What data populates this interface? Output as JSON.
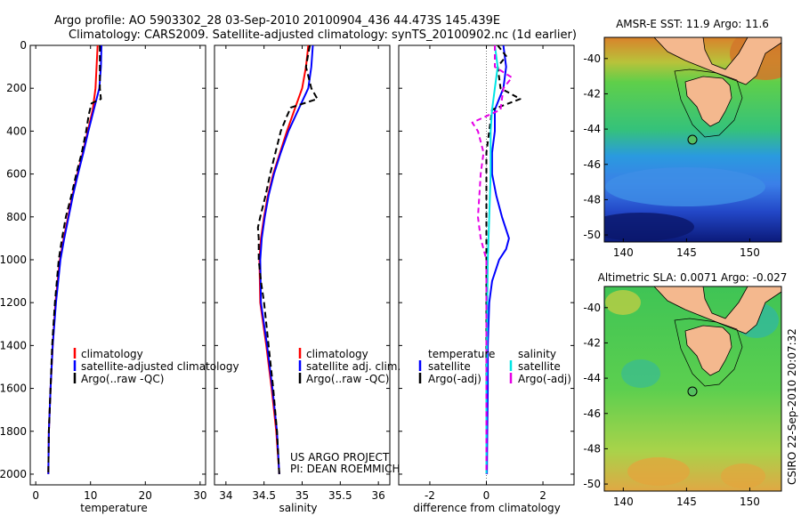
{
  "header": {
    "line1": "Argo profile: AO 5903302_28 03-Sep-2010 20100904_436 44.473S 145.439E",
    "line2": "Climatology: CARS2009. Satellite-adjusted climatology: synTS_20100902.nc (1d earlier)"
  },
  "side_label": "CSIRO 22-Sep-2010 20:07:32",
  "project": {
    "line1": "US ARGO PROJECT",
    "line2": "PI: DEAN ROEMMICH"
  },
  "colors": {
    "climatology": "#ff0000",
    "satellite": "#0000ff",
    "argo": "#000000",
    "sal_satellite": "#00e5e5",
    "sal_argo": "#e600e6"
  },
  "chart_data": [
    {
      "id": "temperature",
      "type": "line",
      "xlabel": "temperature",
      "xlim": [
        -1,
        31
      ],
      "ylim": [
        0,
        2050
      ],
      "y_reversed": true,
      "xticks": [
        "0",
        "10",
        "20",
        "30"
      ],
      "xtick_values": [
        0,
        10,
        20,
        30
      ],
      "yticks": [
        "0",
        "200",
        "400",
        "600",
        "800",
        "1000",
        "1200",
        "1400",
        "1600",
        "1800",
        "2000"
      ],
      "ytick_values": [
        0,
        200,
        400,
        600,
        800,
        1000,
        1200,
        1400,
        1600,
        1800,
        2000
      ],
      "legend": [
        "climatology",
        "satellite-adjusted climatology",
        "Argo(..raw -QC)"
      ],
      "series": [
        {
          "name": "climatology",
          "color": "#ff0000",
          "dash": "",
          "depth": [
            0,
            100,
            200,
            300,
            400,
            500,
            600,
            700,
            800,
            900,
            1000,
            1200,
            1400,
            1600,
            1800,
            2000
          ],
          "values": [
            11.3,
            11.1,
            10.9,
            10.4,
            9.5,
            8.6,
            7.6,
            6.7,
            5.9,
            5.1,
            4.4,
            3.6,
            3.1,
            2.7,
            2.4,
            2.3
          ]
        },
        {
          "name": "satellite-adjusted climatology",
          "color": "#0000ff",
          "dash": "",
          "depth": [
            0,
            100,
            200,
            300,
            400,
            500,
            600,
            700,
            800,
            900,
            1000,
            1200,
            1400,
            1600,
            1800,
            2000
          ],
          "values": [
            12.0,
            11.9,
            11.6,
            10.6,
            9.6,
            8.7,
            7.7,
            6.8,
            6.0,
            5.2,
            4.5,
            3.7,
            3.1,
            2.7,
            2.4,
            2.3
          ]
        },
        {
          "name": "Argo(..raw -QC)",
          "color": "#000000",
          "dash": "7,4",
          "depth": [
            0,
            100,
            200,
            250,
            270,
            320,
            400,
            500,
            600,
            700,
            800,
            900,
            1000,
            1200,
            1400,
            1600,
            1800,
            2000
          ],
          "values": [
            11.7,
            11.7,
            11.7,
            11.9,
            10.2,
            9.7,
            9.2,
            8.4,
            7.4,
            6.5,
            5.5,
            4.8,
            4.2,
            3.5,
            3.0,
            2.7,
            2.4,
            2.3
          ]
        }
      ]
    },
    {
      "id": "salinity",
      "type": "line",
      "xlabel": "salinity",
      "xlim": [
        33.85,
        36.15
      ],
      "ylim": [
        0,
        2050
      ],
      "y_reversed": true,
      "xticks": [
        "34",
        "34.5",
        "35",
        "35.5",
        "36"
      ],
      "xtick_values": [
        34,
        34.5,
        35,
        35.5,
        36
      ],
      "legend": [
        "climatology",
        "satellite adj. clim.",
        "Argo(..raw -QC)"
      ],
      "series": [
        {
          "name": "climatology",
          "color": "#ff0000",
          "dash": "",
          "depth": [
            0,
            100,
            200,
            300,
            400,
            500,
            600,
            700,
            800,
            900,
            1000,
            1200,
            1400,
            1600,
            1800,
            2000
          ],
          "values": [
            35.08,
            35.05,
            35.0,
            34.9,
            34.8,
            34.71,
            34.62,
            34.55,
            34.5,
            34.46,
            34.44,
            34.45,
            34.53,
            34.6,
            34.66,
            34.7
          ]
        },
        {
          "name": "satellite adj. clim.",
          "color": "#0000ff",
          "dash": "",
          "depth": [
            0,
            100,
            200,
            300,
            400,
            500,
            600,
            700,
            800,
            900,
            1000,
            1200,
            1400,
            1600,
            1800,
            2000
          ],
          "values": [
            35.14,
            35.12,
            35.08,
            34.95,
            34.82,
            34.72,
            34.63,
            34.56,
            34.51,
            34.47,
            34.45,
            34.46,
            34.54,
            34.61,
            34.67,
            34.7
          ]
        },
        {
          "name": "Argo(..raw -QC)",
          "color": "#000000",
          "dash": "7,4",
          "depth": [
            0,
            100,
            200,
            250,
            290,
            330,
            400,
            500,
            600,
            700,
            800,
            850,
            900,
            1000,
            1100,
            1200,
            1400,
            1600,
            1800,
            2000
          ],
          "values": [
            35.1,
            35.05,
            35.12,
            35.2,
            34.85,
            34.8,
            34.72,
            34.65,
            34.58,
            34.52,
            34.45,
            34.42,
            34.43,
            34.43,
            34.46,
            34.5,
            34.56,
            34.62,
            34.67,
            34.7
          ]
        }
      ]
    },
    {
      "id": "difference",
      "type": "line",
      "xlabel": "difference from climatology",
      "xlim": [
        -3.1,
        3.1
      ],
      "ylim": [
        0,
        2050
      ],
      "y_reversed": true,
      "xticks": [
        "-2",
        "0",
        "2"
      ],
      "xtick_values": [
        -2,
        0,
        2
      ],
      "legend_title": [
        "temperature",
        "salinity"
      ],
      "legend": [
        "satellite",
        "Argo(-adj)",
        "satellite",
        "Argo(-adj)"
      ],
      "series": [
        {
          "name": "temperature satellite",
          "color": "#0000ff",
          "dash": "",
          "depth": [
            0,
            100,
            200,
            300,
            400,
            500,
            600,
            700,
            800,
            900,
            950,
            1000,
            1100,
            1200,
            1400,
            1600,
            1800,
            2000
          ],
          "values": [
            0.6,
            0.7,
            0.6,
            0.3,
            0.3,
            0.2,
            0.2,
            0.35,
            0.55,
            0.8,
            0.7,
            0.45,
            0.2,
            0.1,
            0.05,
            0.05,
            0.03,
            0.02
          ]
        },
        {
          "name": "temperature Argo(-adj)",
          "color": "#000000",
          "dash": "6,4",
          "depth": [
            0,
            50,
            100,
            200,
            250,
            300,
            400,
            500,
            600,
            800,
            1000,
            1200,
            1400,
            1600,
            1800,
            2000
          ],
          "values": [
            0.4,
            0.7,
            0.4,
            0.5,
            1.2,
            0.2,
            0.1,
            0.0,
            0.0,
            0.0,
            0.0,
            0.0,
            0.0,
            0.0,
            0.0,
            0.0
          ]
        },
        {
          "name": "salinity satellite",
          "color": "#00e5e5",
          "dash": "",
          "depth": [
            0,
            100,
            200,
            300,
            400,
            500,
            600,
            800,
            1000,
            1200,
            1400,
            1600,
            1800,
            2000
          ],
          "values": [
            0.3,
            0.4,
            0.3,
            0.2,
            0.15,
            0.15,
            0.15,
            0.1,
            0.05,
            0.03,
            0.02,
            0.0,
            0.0,
            0.0
          ]
        },
        {
          "name": "salinity Argo(-adj)",
          "color": "#e600e6",
          "dash": "6,4",
          "depth": [
            0,
            100,
            150,
            200,
            300,
            360,
            400,
            500,
            600,
            700,
            800,
            900,
            1000,
            1200,
            1400,
            1600,
            1800,
            2000
          ],
          "values": [
            0.3,
            0.3,
            0.9,
            0.6,
            0.5,
            -0.5,
            -0.3,
            -0.1,
            -0.2,
            -0.25,
            -0.3,
            -0.2,
            0.0,
            0.0,
            0.0,
            0.0,
            0.0,
            0.0
          ]
        }
      ]
    },
    {
      "id": "sst_map",
      "type": "heatmap",
      "title": "AMSR-E SST: 11.9 Argo: 11.6",
      "xlim": [
        138.5,
        152.5
      ],
      "ylim": [
        -50.4,
        -38.8
      ],
      "xticks": [
        "140",
        "145",
        "150"
      ],
      "xtick_values": [
        140,
        145,
        150
      ],
      "yticks": [
        "-40",
        "-42",
        "-44",
        "-46",
        "-48",
        "-50"
      ],
      "ytick_values": [
        -40,
        -42,
        -44,
        -46,
        -48,
        -50
      ],
      "argo_position": [
        145.439,
        -44.473
      ]
    },
    {
      "id": "sla_map",
      "type": "heatmap",
      "title": "Altimetric SLA: 0.0071 Argo: -0.027",
      "xlim": [
        138.5,
        152.5
      ],
      "ylim": [
        -50.4,
        -38.8
      ],
      "xticks": [
        "140",
        "145",
        "150"
      ],
      "xtick_values": [
        140,
        145,
        150
      ],
      "yticks": [
        "-40",
        "-42",
        "-44",
        "-46",
        "-48",
        "-50"
      ],
      "ytick_values": [
        -40,
        -42,
        -44,
        -46,
        -48,
        -50
      ],
      "argo_position": [
        145.439,
        -44.473
      ]
    }
  ]
}
